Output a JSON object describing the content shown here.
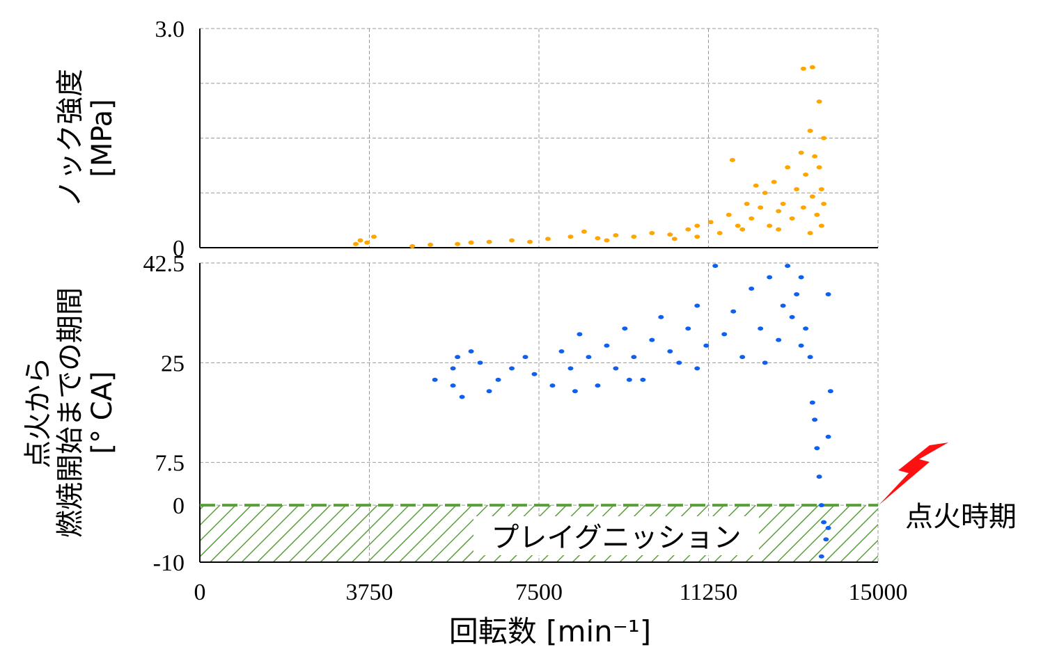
{
  "chart_data": [
    {
      "type": "scatter",
      "ylabel": [
        "ノック強度",
        "[MPa]"
      ],
      "color": "#ffa500",
      "xlim": [
        0,
        15000
      ],
      "xticks": [
        0,
        3750,
        7500,
        11250,
        15000
      ],
      "ylim": [
        0,
        3
      ],
      "yticks": [
        0,
        {
          "value": 3,
          "label": "3.0"
        }
      ],
      "ygrid": [
        0.75,
        1.5,
        2.25
      ],
      "x": [
        3450,
        3550,
        3700,
        3850,
        4700,
        5100,
        5700,
        6000,
        6400,
        6900,
        7300,
        7700,
        8200,
        8500,
        8800,
        9200,
        9600,
        10000,
        10400,
        10800,
        11000,
        11300,
        11500,
        11700,
        11900,
        12100,
        12200,
        12400,
        12500,
        12600,
        12700,
        12800,
        12900,
        13000,
        13100,
        13200,
        13300,
        13350,
        13400,
        13500,
        13550,
        13600,
        13650,
        13700,
        13700,
        13750,
        13750,
        13800,
        13800,
        12000,
        11000,
        12800,
        13500,
        9000,
        10500,
        11780,
        13350,
        13550,
        12300
      ],
      "y": [
        0.05,
        0.1,
        0.07,
        0.15,
        0.02,
        0.04,
        0.05,
        0.07,
        0.08,
        0.1,
        0.08,
        0.12,
        0.15,
        0.22,
        0.13,
        0.17,
        0.15,
        0.2,
        0.18,
        0.25,
        0.3,
        0.35,
        0.2,
        0.45,
        0.3,
        0.6,
        0.4,
        0.55,
        0.75,
        0.3,
        0.9,
        0.5,
        0.6,
        1.1,
        0.4,
        0.8,
        1.3,
        0.55,
        1.0,
        1.6,
        0.7,
        1.25,
        0.45,
        2.0,
        1.1,
        0.8,
        0.3,
        1.5,
        0.6,
        0.25,
        0.15,
        0.25,
        0.2,
        0.1,
        0.12,
        1.2,
        2.45,
        2.47,
        0.85
      ]
    },
    {
      "type": "scatter",
      "ylabel": [
        "点火から",
        "燃焼開始までの期間",
        "[° CA]"
      ],
      "color": "#1060f0",
      "xlabel": "回転数 [min⁻¹]",
      "xlim": [
        0,
        15000
      ],
      "xticks": [
        0,
        3750,
        7500,
        11250,
        15000
      ],
      "ylim": [
        -10,
        42.5
      ],
      "yticks": [
        -10,
        0,
        7.5,
        25,
        42.5
      ],
      "threshold": 0,
      "threshold_color": "#5a9e3a",
      "annotations": [
        "プレイグニッション",
        "点火時期"
      ],
      "x": [
        5200,
        5600,
        5600,
        5700,
        5800,
        6000,
        6200,
        6400,
        6600,
        6900,
        7200,
        7400,
        7800,
        8000,
        8200,
        8400,
        8600,
        8800,
        9000,
        9200,
        9400,
        9600,
        9800,
        10000,
        10200,
        10400,
        10600,
        10800,
        11000,
        11200,
        11400,
        11600,
        11800,
        12000,
        12200,
        12400,
        12600,
        12800,
        12900,
        13000,
        13100,
        13200,
        13300,
        13400,
        13500,
        13550,
        13600,
        13650,
        13700,
        13750,
        13800,
        13850,
        13750,
        13900,
        13900,
        13950,
        13900,
        12500,
        11000,
        9500,
        8300,
        13300
      ],
      "y": [
        22,
        24,
        21,
        26,
        19,
        27,
        25,
        20,
        22,
        24,
        26,
        23,
        21,
        27,
        24,
        30,
        26,
        21,
        28,
        24,
        31,
        26,
        22,
        29,
        33,
        27,
        25,
        31,
        35,
        28,
        42,
        30,
        34,
        26,
        38,
        31,
        40,
        29,
        35,
        42,
        33,
        37,
        28,
        31,
        26,
        18,
        15,
        10,
        5,
        0,
        -3,
        -6,
        -9,
        -4,
        12,
        20,
        37,
        25,
        24,
        22,
        20,
        40
      ]
    }
  ]
}
